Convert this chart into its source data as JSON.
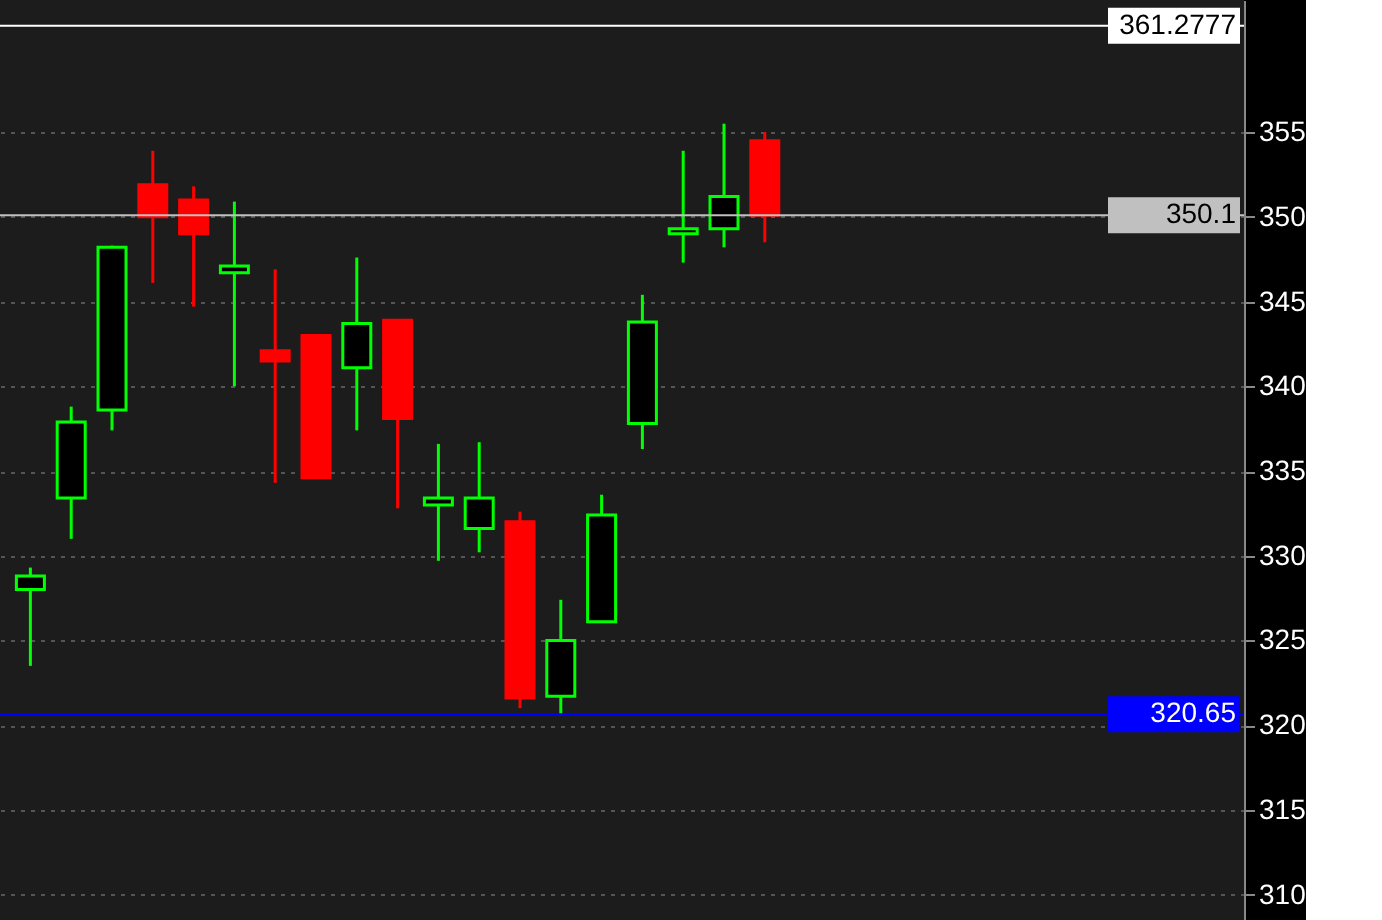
{
  "chart_data": {
    "type": "candlestick",
    "categories": [
      null,
      null,
      null,
      null,
      null,
      null,
      null,
      null,
      null,
      null,
      null,
      null,
      null,
      null,
      null,
      null,
      null,
      null,
      null,
      null,
      null,
      null,
      null,
      null,
      null,
      null,
      null,
      null,
      null,
      null
    ],
    "ohlc": [
      [
        328.0,
        329.3,
        323.5,
        328.8
      ],
      [
        333.4,
        338.8,
        331.0,
        337.9
      ],
      [
        338.6,
        348.3,
        337.4,
        348.2
      ],
      [
        351.9,
        353.9,
        346.1,
        350.0
      ],
      [
        351.0,
        351.8,
        344.7,
        349.0
      ],
      [
        346.7,
        350.9,
        340.0,
        347.1
      ],
      [
        342.1,
        346.9,
        334.3,
        341.5
      ],
      [
        343.0,
        343.0,
        334.6,
        334.6
      ],
      [
        341.1,
        347.6,
        337.4,
        343.7
      ],
      [
        343.9,
        343.9,
        332.8,
        338.1
      ],
      [
        333.0,
        336.6,
        329.7,
        333.4
      ],
      [
        331.6,
        336.7,
        330.2,
        333.4
      ],
      [
        332.0,
        332.6,
        321.0,
        321.6
      ],
      [
        321.7,
        327.4,
        320.65,
        325.0
      ],
      [
        326.1,
        333.6,
        326.1,
        332.4
      ],
      [
        337.8,
        345.4,
        336.3,
        343.8
      ],
      [
        349.0,
        353.9,
        347.3,
        349.3
      ],
      [
        349.3,
        355.5,
        348.2,
        351.2
      ],
      [
        354.5,
        355.0,
        348.5,
        350.1
      ],
      null,
      null,
      null,
      null,
      null,
      null,
      null,
      null,
      null,
      null,
      null
    ],
    "colors": [
      "#00ff00",
      "#00ff00",
      "#00ff00",
      "#ff0000",
      "#ff0000",
      "#00ff00",
      "#ff0000",
      "#ff0000",
      "#00ff00",
      "#ff0000",
      "#00ff00",
      "#00ff00",
      "#ff0000",
      "#00ff00",
      "#00ff00",
      "#00ff00",
      "#00ff00",
      "#00ff00",
      "#ff0000",
      null,
      null,
      null,
      null,
      null,
      null,
      null,
      null,
      null,
      null,
      null
    ],
    "ylim": [
      308.5,
      362.8
    ],
    "yticks": [
      310,
      315,
      320,
      325,
      330,
      335,
      340,
      345,
      350,
      355
    ],
    "grid": "y",
    "tick_labels": "y",
    "ref_lines": [
      {
        "axis": "y",
        "value": 361.2777,
        "label": "361.2777",
        "color": "#ffffff"
      },
      {
        "axis": "y",
        "value": 350.1,
        "label": "350.1",
        "color": "#c0c0c0"
      },
      {
        "axis": "y",
        "value": 320.65,
        "label": "320.65",
        "color": "#0000ff"
      }
    ]
  }
}
